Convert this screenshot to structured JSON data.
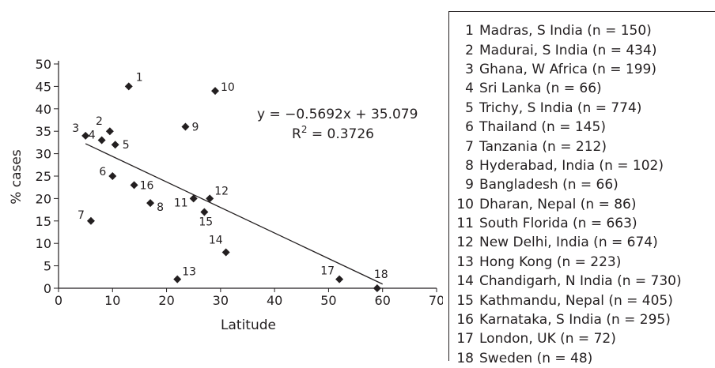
{
  "chart_data": {
    "type": "scatter",
    "xlabel": "Latitude",
    "ylabel": "% cases",
    "xlim": [
      0,
      70
    ],
    "ylim": [
      0,
      50
    ],
    "xticks": [
      0,
      10,
      20,
      30,
      40,
      50,
      60,
      70
    ],
    "yticks": [
      0,
      5,
      10,
      15,
      20,
      25,
      30,
      35,
      40,
      45,
      50
    ],
    "points": [
      {
        "label": "1",
        "x": 13,
        "y": 45
      },
      {
        "label": "2",
        "x": 9.5,
        "y": 35
      },
      {
        "label": "3",
        "x": 5,
        "y": 34
      },
      {
        "label": "4",
        "x": 8,
        "y": 33
      },
      {
        "label": "5",
        "x": 10.5,
        "y": 32
      },
      {
        "label": "6",
        "x": 10,
        "y": 25
      },
      {
        "label": "7",
        "x": 6,
        "y": 15
      },
      {
        "label": "8",
        "x": 17,
        "y": 19
      },
      {
        "label": "9",
        "x": 23.5,
        "y": 36
      },
      {
        "label": "10",
        "x": 29,
        "y": 44
      },
      {
        "label": "11",
        "x": 25,
        "y": 20
      },
      {
        "label": "12",
        "x": 28,
        "y": 20
      },
      {
        "label": "13",
        "x": 22,
        "y": 2
      },
      {
        "label": "14",
        "x": 31,
        "y": 8
      },
      {
        "label": "15",
        "x": 27,
        "y": 17
      },
      {
        "label": "16",
        "x": 14,
        "y": 23
      },
      {
        "label": "17",
        "x": 52,
        "y": 2
      },
      {
        "label": "18",
        "x": 59,
        "y": 0
      }
    ],
    "trendline": {
      "slope": -0.5692,
      "intercept": 35.079,
      "x_range": [
        5,
        60
      ]
    },
    "equation": "y = −0.5692x + 35.079",
    "r2_prefix": "R",
    "r2_sup": "2",
    "r2_value": " = 0.3726",
    "legend_position": "right",
    "legend": [
      {
        "num": "1",
        "text": "Madras, S India (n = 150)"
      },
      {
        "num": "2",
        "text": "Madurai, S India (n = 434)"
      },
      {
        "num": "3",
        "text": "Ghana, W Africa (n = 199)"
      },
      {
        "num": "4",
        "text": "Sri Lanka (n = 66)"
      },
      {
        "num": "5",
        "text": "Trichy, S India (n = 774)"
      },
      {
        "num": "6",
        "text": "Thailand (n = 145)"
      },
      {
        "num": "7",
        "text": "Tanzania (n = 212)"
      },
      {
        "num": "8",
        "text": "Hyderabad, India (n = 102)"
      },
      {
        "num": "9",
        "text": "Bangladesh (n = 66)"
      },
      {
        "num": "10",
        "text": "Dharan, Nepal (n = 86)"
      },
      {
        "num": "11",
        "text": "South Florida (n = 663)"
      },
      {
        "num": "12",
        "text": "New Delhi, India (n = 674)"
      },
      {
        "num": "13",
        "text": "Hong Kong (n = 223)"
      },
      {
        "num": "14",
        "text": "Chandigarh, N India (n = 730)"
      },
      {
        "num": "15",
        "text": "Kathmandu, Nepal (n = 405)"
      },
      {
        "num": "16",
        "text": "Karnataka, S India (n = 295)"
      },
      {
        "num": "17",
        "text": "London, UK (n = 72)"
      },
      {
        "num": "18",
        "text": "Sweden (n = 48)"
      }
    ]
  }
}
